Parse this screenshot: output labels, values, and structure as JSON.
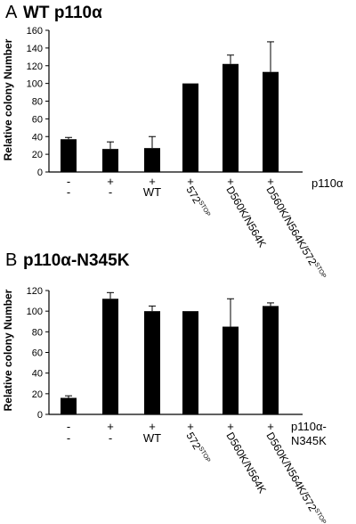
{
  "figure": {
    "background": "#ffffff",
    "bar_color": "#000000"
  },
  "chart_data": [
    {
      "type": "bar",
      "panel_letter": "A",
      "title": "WT p110α",
      "ylabel": "Relative colony Number",
      "ylim": [
        0,
        160
      ],
      "yticks": [
        0,
        20,
        40,
        60,
        80,
        100,
        120,
        140,
        160
      ],
      "row_signs": [
        "-",
        "+",
        "+",
        "+",
        "+",
        "+"
      ],
      "row_series_label": [
        "p110α"
      ],
      "categories": [
        "-",
        "-",
        "WT",
        "572STOP",
        "D560K/N564K",
        "D560K/N564K/572STOP"
      ],
      "category_labels": [
        {
          "main": "-",
          "sup": ""
        },
        {
          "main": "-",
          "sup": ""
        },
        {
          "main": "WT",
          "sup": ""
        },
        {
          "main": "572",
          "sup": "STOP"
        },
        {
          "main": "D560K/N564K",
          "sup": ""
        },
        {
          "main": "D560K/N564K/572",
          "sup": "STOP"
        }
      ],
      "values": [
        37,
        26,
        27,
        100,
        122,
        113
      ],
      "errors": [
        2,
        8,
        13,
        0,
        10,
        34
      ],
      "grid": false,
      "legend": "none"
    },
    {
      "type": "bar",
      "panel_letter": "B",
      "title": "p110α-N345K",
      "ylabel": "Relative colony Number",
      "ylim": [
        0,
        120
      ],
      "yticks": [
        0,
        20,
        40,
        60,
        80,
        100,
        120
      ],
      "row_signs": [
        "-",
        "+",
        "+",
        "+",
        "+",
        "+"
      ],
      "row_series_label": [
        "p110α-",
        "N345K"
      ],
      "categories": [
        "-",
        "-",
        "WT",
        "572STOP",
        "D560K/N564K",
        "D560K/N564K/572STOP"
      ],
      "category_labels": [
        {
          "main": "-",
          "sup": ""
        },
        {
          "main": "-",
          "sup": ""
        },
        {
          "main": "WT",
          "sup": ""
        },
        {
          "main": "572",
          "sup": "STOP"
        },
        {
          "main": "D560K/N564K",
          "sup": ""
        },
        {
          "main": "D560K/N564K/572",
          "sup": "STOP"
        }
      ],
      "values": [
        16,
        112,
        100,
        100,
        85,
        105
      ],
      "errors": [
        2,
        6,
        5,
        0,
        27,
        3
      ],
      "grid": false,
      "legend": "none"
    }
  ]
}
